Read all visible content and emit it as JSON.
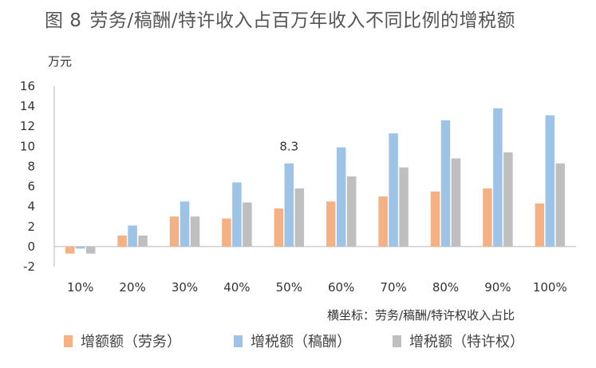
{
  "figure": {
    "label": "图 8",
    "title": "劳务/稿酬/特许收入占百万年收入不同比例的增税额"
  },
  "chart_data": {
    "type": "bar",
    "title": "图 8 劳务/稿酬/特许收入占百万年收入不同比例的增税额",
    "ylabel": "万元",
    "xlabel": "横坐标：劳务/稿酬/特许权收入占比",
    "ylim": [
      -2,
      16
    ],
    "yticks": [
      -2,
      0,
      2,
      4,
      6,
      8,
      10,
      12,
      14,
      16
    ],
    "grid": false,
    "legend_position": "bottom",
    "categories": [
      "10%",
      "20%",
      "30%",
      "40%",
      "50%",
      "60%",
      "70%",
      "80%",
      "90%",
      "100%"
    ],
    "series": [
      {
        "name": "增额额（劳务）",
        "color": "#F4B183",
        "values": [
          -0.7,
          1.1,
          3.0,
          2.8,
          3.8,
          4.5,
          5.0,
          5.5,
          5.8,
          4.3
        ]
      },
      {
        "name": "增税额（稿酬）",
        "color": "#9DC3E6",
        "values": [
          -0.2,
          2.1,
          4.5,
          6.4,
          8.3,
          9.9,
          11.3,
          12.6,
          13.8,
          13.1
        ]
      },
      {
        "name": "增税额（特许权）",
        "color": "#BFBFBF",
        "values": [
          -0.7,
          1.1,
          3.0,
          4.4,
          5.8,
          7.0,
          7.9,
          8.8,
          9.4,
          8.3
        ]
      }
    ],
    "annotations": [
      {
        "category": "50%",
        "series": 1,
        "text": "8.3"
      }
    ]
  }
}
